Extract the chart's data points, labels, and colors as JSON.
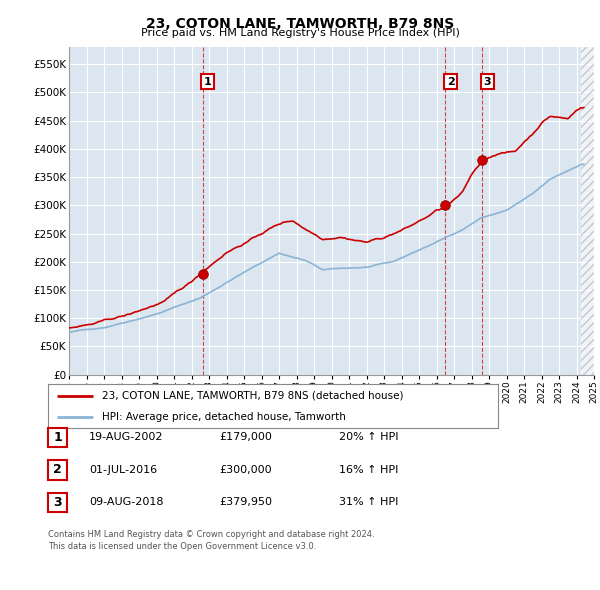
{
  "title": "23, COTON LANE, TAMWORTH, B79 8NS",
  "subtitle": "Price paid vs. HM Land Registry's House Price Index (HPI)",
  "legend_line1": "23, COTON LANE, TAMWORTH, B79 8NS (detached house)",
  "legend_line2": "HPI: Average price, detached house, Tamworth",
  "footnote1": "Contains HM Land Registry data © Crown copyright and database right 2024.",
  "footnote2": "This data is licensed under the Open Government Licence v3.0.",
  "transactions": [
    {
      "num": 1,
      "date": "19-AUG-2002",
      "price": "£179,000",
      "hpi": "20% ↑ HPI",
      "x_year": 2002.63,
      "y_val": 179000
    },
    {
      "num": 2,
      "date": "01-JUL-2016",
      "price": "£300,000",
      "hpi": "16% ↑ HPI",
      "x_year": 2016.5,
      "y_val": 300000
    },
    {
      "num": 3,
      "date": "09-AUG-2018",
      "price": "£379,950",
      "hpi": "31% ↑ HPI",
      "x_year": 2018.61,
      "y_val": 379950
    }
  ],
  "xmin": 1995.0,
  "xmax": 2025.0,
  "future_start": 2024.25,
  "ymin": 0,
  "ymax": 580000,
  "yticks": [
    0,
    50000,
    100000,
    150000,
    200000,
    250000,
    300000,
    350000,
    400000,
    450000,
    500000,
    550000
  ],
  "background_color": "#dce6f0",
  "grid_color": "#ffffff",
  "red_line_color": "#cc0000",
  "blue_line_color": "#8ab4d4",
  "vline_color": "#cc0000",
  "marker_color": "#cc0000",
  "label_box_color": "#cc0000",
  "future_hatch_color": "#cccccc"
}
